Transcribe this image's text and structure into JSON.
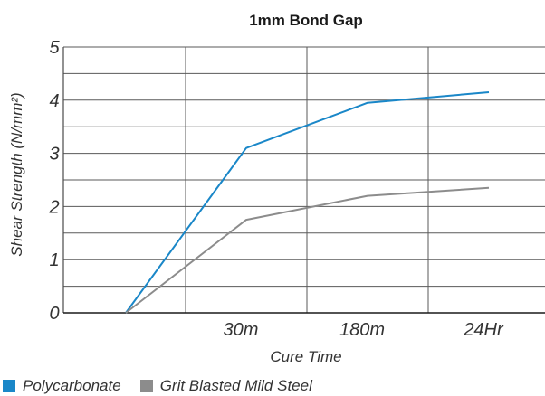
{
  "chart_data": {
    "type": "line",
    "title": "1mm Bond Gap",
    "xlabel": "Cure Time",
    "ylabel": "Shear Strength (N/mm²)",
    "categories": [
      "",
      "30m",
      "180m",
      "24Hr"
    ],
    "yticks": [
      "0",
      "1",
      "2",
      "3",
      "4",
      "5"
    ],
    "ylim": [
      0,
      5
    ],
    "grid": true,
    "legend_position": "bottom",
    "series": [
      {
        "name": "Polycarbonate",
        "color": "#1a87c8",
        "values": [
          0,
          3.1,
          3.95,
          4.15
        ]
      },
      {
        "name": "Grit Blasted Mild Steel",
        "color": "#8c8c8c",
        "values": [
          0,
          1.75,
          2.2,
          2.35
        ]
      }
    ]
  }
}
